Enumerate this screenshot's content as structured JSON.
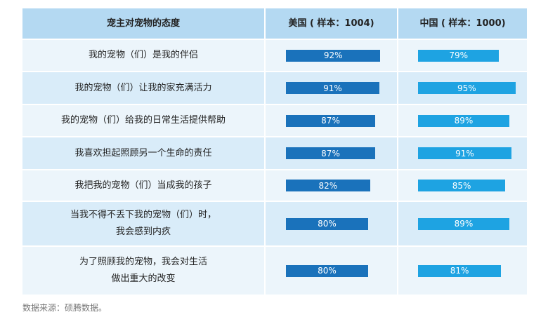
{
  "chart_data": {
    "type": "table-bar",
    "headers": [
      "宠主对宠物的态度",
      "美国 ( 样本：1004)",
      "中国 ( 样本：1000)"
    ],
    "categories": [
      "我的宠物（们）是我的伴侣",
      "我的宠物（们）让我的家充满活力",
      "我的宠物（们）给我的日常生活提供帮助",
      "我喜欢担起照顾另一个生命的责任",
      "我把我的宠物（们）当成我的孩子",
      "当我不得不丢下我的宠物（们）时，\n我会感到内疚",
      "为了照顾我的宠物，我会对生活\n做出重大的改变"
    ],
    "series": [
      {
        "name": "美国 ( 样本：1004)",
        "color": "#1a72bb",
        "values": [
          92,
          91,
          87,
          87,
          82,
          80,
          80
        ],
        "value_labels": [
          "92%",
          "91%",
          "87%",
          "87%",
          "82%",
          "80%",
          "80%"
        ]
      },
      {
        "name": "中国 ( 样本：1000)",
        "color": "#1ea3e2",
        "values": [
          79,
          95,
          89,
          91,
          85,
          89,
          81
        ],
        "value_labels": [
          "79%",
          "95%",
          "89%",
          "91%",
          "85%",
          "89%",
          "81%"
        ]
      }
    ],
    "source": "数据来源：硕腾数据。"
  }
}
